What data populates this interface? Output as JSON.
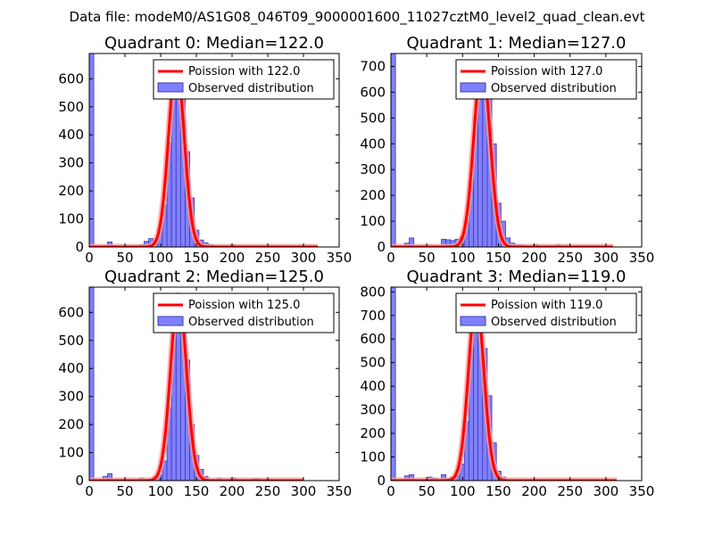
{
  "figure": {
    "suptitle": "Data file: modeM0/AS1G08_046T09_9000001600_11027cztM0_level2_quad_clean.evt"
  },
  "colors": {
    "hist_fill": "#8080ff",
    "hist_edge": "#3b3bb0",
    "poisson_line": "#ff0000",
    "poisson_shadow": "#ff9999"
  },
  "chart_data": [
    {
      "type": "bar",
      "title": "Quadrant 0: Median=122.0",
      "median": 122.0,
      "xlim": [
        0,
        350
      ],
      "ylim": [
        0,
        690
      ],
      "xticks": [
        0,
        50,
        100,
        150,
        200,
        250,
        300,
        350
      ],
      "yticks": [
        0,
        100,
        200,
        300,
        400,
        500,
        600
      ],
      "bin_width": 6.4,
      "hist_left_edges": [
        0,
        25.6,
        32,
        70.4,
        76.8,
        83.2,
        89.6,
        96,
        102.4,
        108.8,
        115.2,
        121.6,
        128,
        134.4,
        140.8,
        147.2,
        153.6,
        160,
        166.4,
        172.8,
        198.4
      ],
      "hist_values": [
        690,
        18,
        5,
        8,
        20,
        30,
        25,
        50,
        150,
        370,
        600,
        650,
        570,
        340,
        175,
        60,
        25,
        15,
        8,
        5,
        8
      ],
      "curve_peak": 650,
      "curve_range": [
        0,
        320
      ],
      "series": [
        {
          "name": "Poission with 122.0",
          "kind": "line"
        },
        {
          "name": "Observed distribution",
          "kind": "histogram"
        }
      ]
    },
    {
      "type": "bar",
      "title": "Quadrant 1: Median=127.0",
      "median": 127.0,
      "xlim": [
        0,
        350
      ],
      "ylim": [
        0,
        750
      ],
      "xticks": [
        0,
        50,
        100,
        150,
        200,
        250,
        300,
        350
      ],
      "yticks": [
        0,
        100,
        200,
        300,
        400,
        500,
        600,
        700
      ],
      "bin_width": 6.4,
      "hist_left_edges": [
        0,
        19.2,
        25.6,
        70.4,
        76.8,
        83.2,
        89.6,
        96,
        102.4,
        108.8,
        115.2,
        121.6,
        128,
        134.4,
        140.8,
        147.2,
        153.6,
        160,
        166.4,
        172.8,
        179.2,
        198.4,
        230.4
      ],
      "hist_values": [
        750,
        15,
        35,
        30,
        28,
        25,
        30,
        40,
        100,
        250,
        500,
        700,
        720,
        590,
        400,
        170,
        100,
        35,
        15,
        10,
        8,
        10,
        10
      ],
      "curve_peak": 715,
      "curve_range": [
        0,
        310
      ],
      "series": [
        {
          "name": "Poission with 127.0",
          "kind": "line"
        },
        {
          "name": "Observed distribution",
          "kind": "histogram"
        }
      ]
    },
    {
      "type": "bar",
      "title": "Quadrant 2: Median=125.0",
      "median": 125.0,
      "xlim": [
        0,
        350
      ],
      "ylim": [
        0,
        690
      ],
      "xticks": [
        0,
        50,
        100,
        150,
        200,
        250,
        300,
        350
      ],
      "yticks": [
        0,
        100,
        200,
        300,
        400,
        500,
        600
      ],
      "bin_width": 6.4,
      "hist_left_edges": [
        0,
        19.2,
        25.6,
        70.4,
        89.6,
        96,
        102.4,
        108.8,
        115.2,
        121.6,
        128,
        134.4,
        140.8,
        147.2,
        153.6,
        160,
        179.2,
        198.4,
        230.4
      ],
      "hist_values": [
        690,
        15,
        25,
        10,
        15,
        20,
        70,
        260,
        620,
        660,
        620,
        430,
        200,
        90,
        40,
        15,
        10,
        10,
        8
      ],
      "curve_peak": 660,
      "curve_range": [
        0,
        300
      ],
      "series": [
        {
          "name": "Poission with 125.0",
          "kind": "line"
        },
        {
          "name": "Observed distribution",
          "kind": "histogram"
        }
      ]
    },
    {
      "type": "bar",
      "title": "Quadrant 3: Median=119.0",
      "median": 119.0,
      "xlim": [
        0,
        350
      ],
      "ylim": [
        0,
        820
      ],
      "xticks": [
        0,
        50,
        100,
        150,
        200,
        250,
        300,
        350
      ],
      "yticks": [
        0,
        100,
        200,
        300,
        400,
        500,
        600,
        700,
        800
      ],
      "bin_width": 6.4,
      "hist_left_edges": [
        0,
        19.2,
        25.6,
        51.2,
        57.6,
        70.4,
        83.2,
        89.6,
        96,
        102.4,
        108.8,
        115.2,
        121.6,
        128,
        134.4,
        140.8,
        147.2,
        153.6
      ],
      "hist_values": [
        820,
        20,
        25,
        15,
        10,
        25,
        15,
        20,
        70,
        250,
        560,
        720,
        660,
        560,
        360,
        160,
        40,
        15
      ],
      "curve_peak": 760,
      "curve_range": [
        0,
        315
      ],
      "series": [
        {
          "name": "Poission with 119.0",
          "kind": "line"
        },
        {
          "name": "Observed distribution",
          "kind": "histogram"
        }
      ]
    }
  ]
}
